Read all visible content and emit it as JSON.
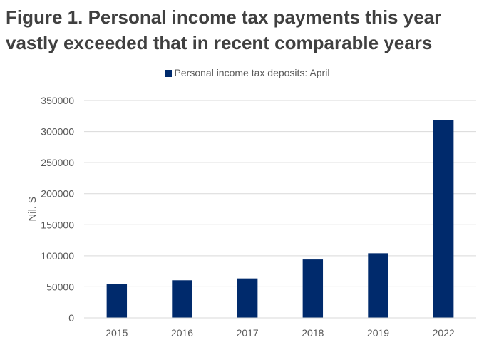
{
  "chart_data": {
    "type": "bar",
    "title": "Figure 1. Personal income tax payments this year vastly exceeded that in recent comparable years",
    "categories": [
      "2015",
      "2016",
      "2017",
      "2018",
      "2019",
      "2022"
    ],
    "series": [
      {
        "name": "Personal income tax deposits: April",
        "values": [
          55000,
          60500,
          63500,
          94000,
          104000,
          319000
        ]
      }
    ],
    "xlabel": "",
    "ylabel": "Nil. $",
    "ylim": [
      0,
      350000
    ],
    "yticks": [
      0,
      50000,
      100000,
      150000,
      200000,
      250000,
      300000,
      350000
    ],
    "grid": true,
    "legend_position": "top-center",
    "colors": {
      "bar": "#002a6c",
      "grid": "#d9d9d9",
      "text": "#595959",
      "title": "#404040"
    }
  }
}
